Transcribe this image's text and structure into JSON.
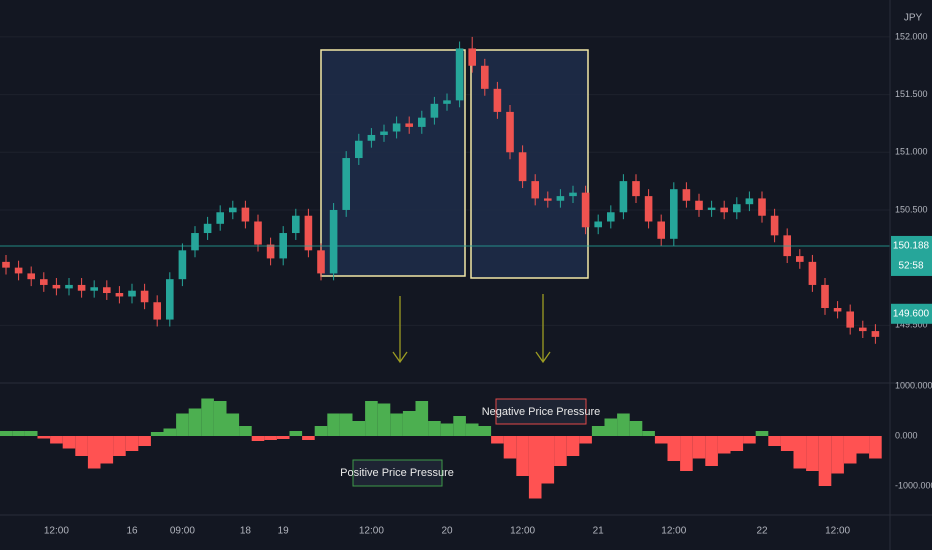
{
  "chart_data": [
    {
      "type": "candlestick",
      "currency": "JPY",
      "categories": [
        null,
        null,
        null,
        null,
        "12:00",
        null,
        null,
        null,
        null,
        null,
        "16",
        null,
        null,
        null,
        "09:00",
        null,
        null,
        null,
        null,
        "18",
        null,
        null,
        "19",
        null,
        null,
        null,
        null,
        null,
        null,
        "12:00",
        null,
        null,
        null,
        null,
        null,
        "20",
        null,
        null,
        null,
        null,
        null,
        "12:00",
        null,
        null,
        null,
        null,
        null,
        "21",
        null,
        null,
        null,
        null,
        null,
        "12:00",
        null,
        null,
        null,
        null,
        null,
        null,
        "22",
        null,
        null,
        null,
        null,
        null,
        "12:00",
        null,
        null,
        null
      ],
      "open": [
        150.05,
        150.0,
        149.95,
        149.9,
        149.85,
        149.82,
        149.85,
        149.8,
        149.83,
        149.78,
        149.75,
        149.8,
        149.7,
        149.55,
        149.9,
        150.15,
        150.3,
        150.38,
        150.48,
        150.52,
        150.4,
        150.2,
        150.08,
        150.3,
        150.45,
        150.15,
        149.95,
        150.5,
        150.95,
        151.1,
        151.15,
        151.18,
        151.25,
        151.22,
        151.3,
        151.42,
        151.45,
        151.9,
        151.75,
        151.55,
        151.35,
        151.0,
        150.75,
        150.6,
        150.58,
        150.62,
        150.65,
        150.35,
        150.4,
        150.48,
        150.75,
        150.62,
        150.4,
        150.25,
        150.68,
        150.58,
        150.5,
        150.52,
        150.48,
        150.55,
        150.6,
        150.45,
        150.28,
        150.1,
        150.05,
        149.85,
        149.65,
        149.62,
        149.48,
        149.45
      ],
      "high": [
        150.11,
        150.06,
        150.01,
        149.96,
        149.91,
        149.91,
        149.91,
        149.89,
        149.89,
        149.84,
        149.86,
        149.86,
        149.76,
        149.96,
        150.21,
        150.36,
        150.44,
        150.54,
        150.58,
        150.58,
        150.46,
        150.26,
        150.36,
        150.51,
        150.51,
        150.21,
        150.56,
        151.01,
        151.16,
        151.21,
        151.24,
        151.31,
        151.31,
        151.36,
        151.48,
        151.51,
        151.96,
        152.0,
        151.81,
        151.61,
        151.41,
        151.06,
        150.81,
        150.66,
        150.68,
        150.71,
        150.71,
        150.46,
        150.54,
        150.81,
        150.81,
        150.68,
        150.46,
        150.74,
        150.74,
        150.64,
        150.58,
        150.58,
        150.61,
        150.66,
        150.66,
        150.51,
        150.34,
        150.16,
        150.11,
        149.91,
        149.71,
        149.68,
        149.54,
        149.51
      ],
      "low": [
        149.94,
        149.89,
        149.84,
        149.79,
        149.76,
        149.76,
        149.74,
        149.74,
        149.72,
        149.69,
        149.69,
        149.64,
        149.49,
        149.49,
        149.84,
        150.09,
        150.24,
        150.32,
        150.42,
        150.34,
        150.14,
        150.02,
        150.02,
        150.24,
        150.09,
        149.89,
        149.89,
        150.44,
        150.89,
        151.04,
        151.09,
        151.12,
        151.16,
        151.16,
        151.24,
        151.36,
        151.39,
        151.69,
        151.49,
        151.29,
        150.94,
        150.69,
        150.54,
        150.52,
        150.52,
        150.56,
        150.29,
        150.29,
        150.34,
        150.42,
        150.56,
        150.34,
        150.19,
        150.19,
        150.52,
        150.44,
        150.44,
        150.42,
        150.42,
        150.49,
        150.39,
        150.22,
        150.04,
        149.99,
        149.79,
        149.59,
        149.56,
        149.42,
        149.39,
        149.34
      ],
      "close": [
        150.0,
        149.95,
        149.9,
        149.85,
        149.82,
        149.85,
        149.8,
        149.83,
        149.78,
        149.75,
        149.8,
        149.7,
        149.55,
        149.9,
        150.15,
        150.3,
        150.38,
        150.48,
        150.52,
        150.4,
        150.2,
        150.08,
        150.3,
        150.45,
        150.15,
        149.95,
        150.5,
        150.95,
        151.1,
        151.15,
        151.18,
        151.25,
        151.22,
        151.3,
        151.42,
        151.45,
        151.9,
        151.75,
        151.55,
        151.35,
        151.0,
        150.75,
        150.6,
        150.58,
        150.62,
        150.65,
        150.35,
        150.4,
        150.48,
        150.75,
        150.62,
        150.4,
        150.25,
        150.68,
        150.58,
        150.5,
        150.52,
        150.48,
        150.55,
        150.6,
        150.45,
        150.28,
        150.1,
        150.05,
        149.85,
        149.65,
        149.62,
        149.48,
        149.45,
        149.4
      ],
      "up_color": "#26a69a",
      "down_color": "#ef5350",
      "ylim": [
        149.0,
        152.32
      ],
      "yticks": [
        {
          "value": 149.5,
          "label": "149.500"
        },
        {
          "value": 150.5,
          "label": "150.500"
        },
        {
          "value": 151.0,
          "label": "151.000"
        },
        {
          "value": 151.5,
          "label": "151.500"
        },
        {
          "value": 152.0,
          "label": "152.000"
        }
      ],
      "grid": true,
      "price_line": {
        "value": 150.188,
        "label": "150.188",
        "countdown": "52:58",
        "color": "#26a69a"
      },
      "last_price": {
        "value": 149.6,
        "label": "149.600",
        "color": "#26a69a"
      }
    },
    {
      "type": "bar",
      "values": [
        100,
        100,
        100,
        -50,
        -150,
        -250,
        -400,
        -650,
        -550,
        -400,
        -300,
        -200,
        80,
        150,
        450,
        550,
        750,
        700,
        450,
        200,
        -100,
        -80,
        -60,
        100,
        -80,
        200,
        450,
        450,
        300,
        700,
        650,
        450,
        500,
        700,
        300,
        250,
        400,
        250,
        200,
        -150,
        -450,
        -800,
        -1250,
        -950,
        -600,
        -400,
        -150,
        200,
        350,
        450,
        300,
        100,
        -150,
        -500,
        -700,
        -450,
        -600,
        -350,
        -300,
        -150,
        100,
        -200,
        -300,
        -650,
        -700,
        -1000,
        -750,
        -550,
        -350,
        -450
      ],
      "positive_color": "#4caf50",
      "negative_color": "#ff5252",
      "ylim": [
        -1580,
        1060
      ],
      "yticks": [
        {
          "value": -1000,
          "label": "-1000.000"
        },
        {
          "value": 0,
          "label": "0.000"
        },
        {
          "value": 1000,
          "label": "1000.000"
        }
      ],
      "annotations": [
        "Negative Price Pressure",
        "Positive Price Pressure"
      ]
    }
  ]
}
